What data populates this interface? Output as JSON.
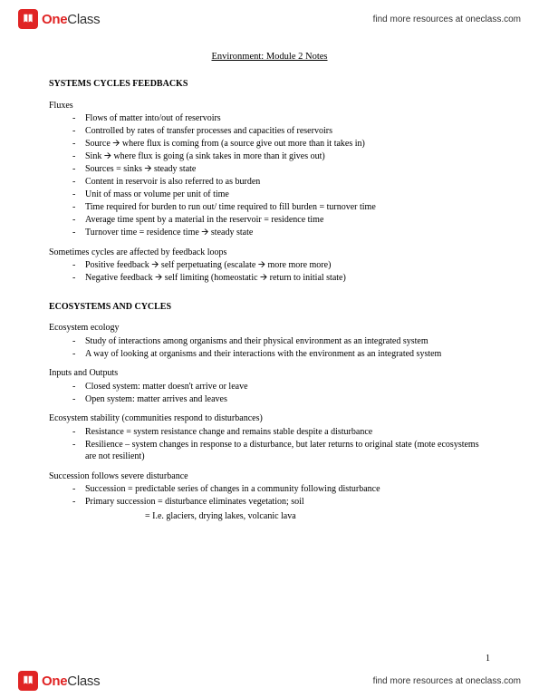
{
  "brand": {
    "one": "One",
    "class": "Class",
    "tagline": "find more resources at oneclass.com"
  },
  "doc": {
    "title": "Environment: Module 2 Notes",
    "page_number": "1",
    "sections": [
      {
        "heading": "SYSTEMS CYCLES FEEDBACKS",
        "groups": [
          {
            "label": "Fluxes",
            "items": [
              "Flows of matter into/out of reservoirs",
              "Controlled by rates of transfer processes and capacities of reservoirs",
              "Source 🡪 where flux is coming from (a source give out more than it takes in)",
              "Sink 🡪 where flux is going (a sink takes in more than it gives out)",
              "Sources = sinks 🡪 steady state",
              "Content in reservoir is also referred to as burden",
              "Unit of mass or volume per unit of time",
              "Time required for burden to run out/ time required to fill burden = turnover time",
              "Average time spent by a material in the reservoir = residence time",
              "Turnover time = residence time 🡪 steady state"
            ]
          },
          {
            "label": "Sometimes cycles are affected by feedback loops",
            "items": [
              "Positive feedback 🡪 self perpetuating (escalate 🡪 more more more)",
              "Negative feedback 🡪 self limiting (homeostatic 🡪 return to initial state)"
            ]
          }
        ]
      },
      {
        "heading": "ECOSYSTEMS AND CYCLES",
        "groups": [
          {
            "label": "Ecosystem ecology",
            "items": [
              "Study of interactions among organisms and their physical environment as an integrated system",
              "A way of looking at organisms and their interactions with the environment as an integrated system"
            ]
          },
          {
            "label": "Inputs and Outputs",
            "items": [
              "Closed system: matter doesn't arrive or leave",
              "Open system: matter arrives and leaves"
            ]
          },
          {
            "label": "Ecosystem stability (communities respond to disturbances)",
            "items": [
              "Resistance = system resistance change and remains stable despite a disturbance",
              "Resilience – system changes in response to a disturbance, but later returns to original state (mote ecosystems are not resilient)"
            ]
          },
          {
            "label": "Succession follows severe disturbance",
            "items": [
              "Succession = predictable series of changes in a community following disturbance",
              "Primary succession = disturbance eliminates vegetation; soil"
            ],
            "sub": "= I.e. glaciers, drying lakes, volcanic lava"
          }
        ]
      }
    ]
  }
}
